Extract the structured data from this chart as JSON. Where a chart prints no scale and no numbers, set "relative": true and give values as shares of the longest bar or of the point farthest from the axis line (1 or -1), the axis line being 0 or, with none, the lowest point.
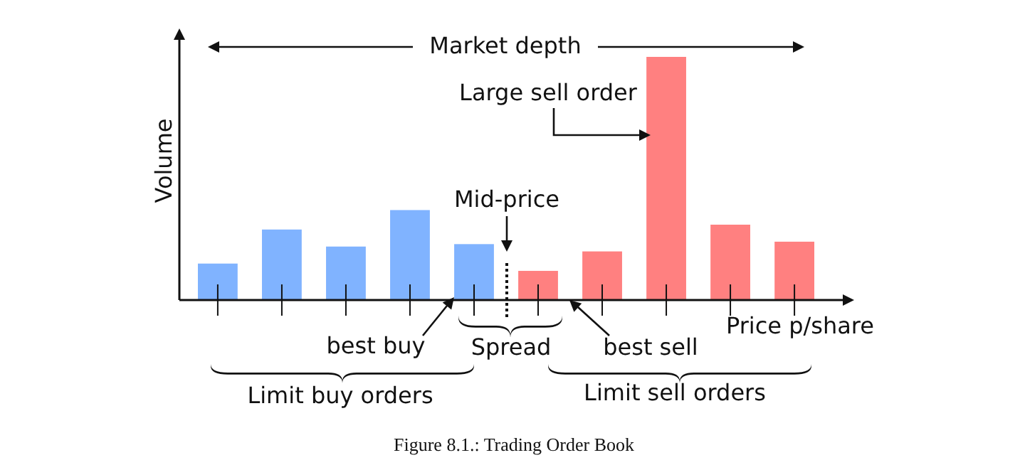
{
  "chart_data": {
    "type": "bar",
    "relative": true,
    "xlabel": "Price p/share",
    "ylabel": "Volume",
    "categories": [
      null,
      null,
      null,
      null,
      null,
      null,
      null,
      null,
      null,
      null
    ],
    "values": [
      0.15,
      0.29,
      0.22,
      0.37,
      0.23,
      0.12,
      0.2,
      1,
      0.31,
      0.24
    ],
    "colors": [
      "#80b3ff",
      "#80b3ff",
      "#80b3ff",
      "#80b3ff",
      "#80b3ff",
      "#ff8080",
      "#ff8080",
      "#ff8080",
      "#ff8080",
      "#ff8080"
    ],
    "annotations": [
      "Market depth",
      "Large sell order",
      "Mid-price",
      "best buy",
      "Spread",
      "best sell",
      "Limit buy orders",
      "Limit sell orders",
      "Figure 8.1.: Trading Order Book"
    ]
  }
}
